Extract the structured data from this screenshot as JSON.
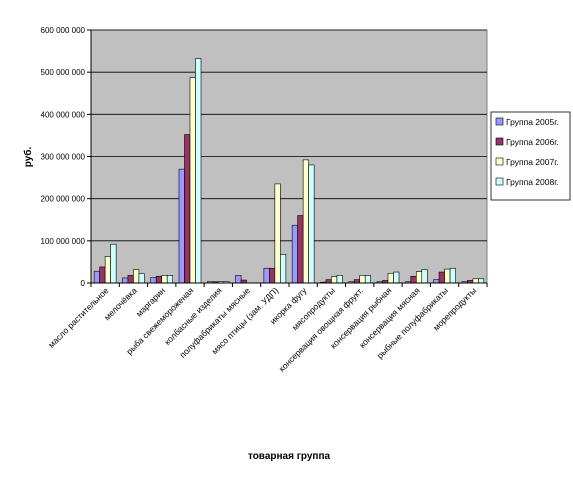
{
  "chart_data": {
    "type": "bar",
    "xlabel": "товарная группа",
    "ylabel": "руб.",
    "ylim": [
      0,
      600000000
    ],
    "yticks": [
      0,
      100000000,
      200000000,
      300000000,
      400000000,
      500000000,
      600000000
    ],
    "ytick_labels": [
      "0",
      "100 000 000",
      "200 000 000",
      "300 000 000",
      "400 000 000",
      "500 000 000",
      "600 000 000"
    ],
    "grid": true,
    "legend_position": "right",
    "categories": [
      "масло растительное",
      "мелочёвка",
      "маргарин",
      "рыба свежемороженая",
      "колбасные изделия",
      "полуфабрикаты мясные",
      "мясо птицы (зам. УДП)",
      "икорка фугу",
      "мясопродукты",
      "консервация овощная фрукт.",
      "консервация рыбная",
      "консервация мясная",
      "рыбные полуфабрикаты",
      "морепродукты"
    ],
    "series": [
      {
        "name": "Группа 2005г.",
        "color": "#9999ff",
        "values": [
          28000000,
          12000000,
          13000000,
          270000000,
          3000000,
          18000000,
          35000000,
          137000000,
          2000000,
          3000000,
          3000000,
          3000000,
          8000000,
          3000000
        ]
      },
      {
        "name": "Группа 2006г.",
        "color": "#993366",
        "values": [
          38000000,
          18000000,
          16000000,
          352000000,
          3000000,
          7000000,
          35000000,
          160000000,
          8000000,
          8000000,
          6000000,
          16000000,
          26000000,
          6000000
        ]
      },
      {
        "name": "Группа 2007г.",
        "color": "#ffffcc",
        "values": [
          63000000,
          32000000,
          18000000,
          487000000,
          3000000,
          0,
          235000000,
          292000000,
          15000000,
          18000000,
          23000000,
          27000000,
          33000000,
          10000000
        ]
      },
      {
        "name": "Группа 2008г.",
        "color": "#ccffff",
        "values": [
          92000000,
          22000000,
          18000000,
          532000000,
          3000000,
          0,
          68000000,
          280000000,
          18000000,
          18000000,
          26000000,
          32000000,
          35000000,
          10000000
        ]
      }
    ]
  }
}
